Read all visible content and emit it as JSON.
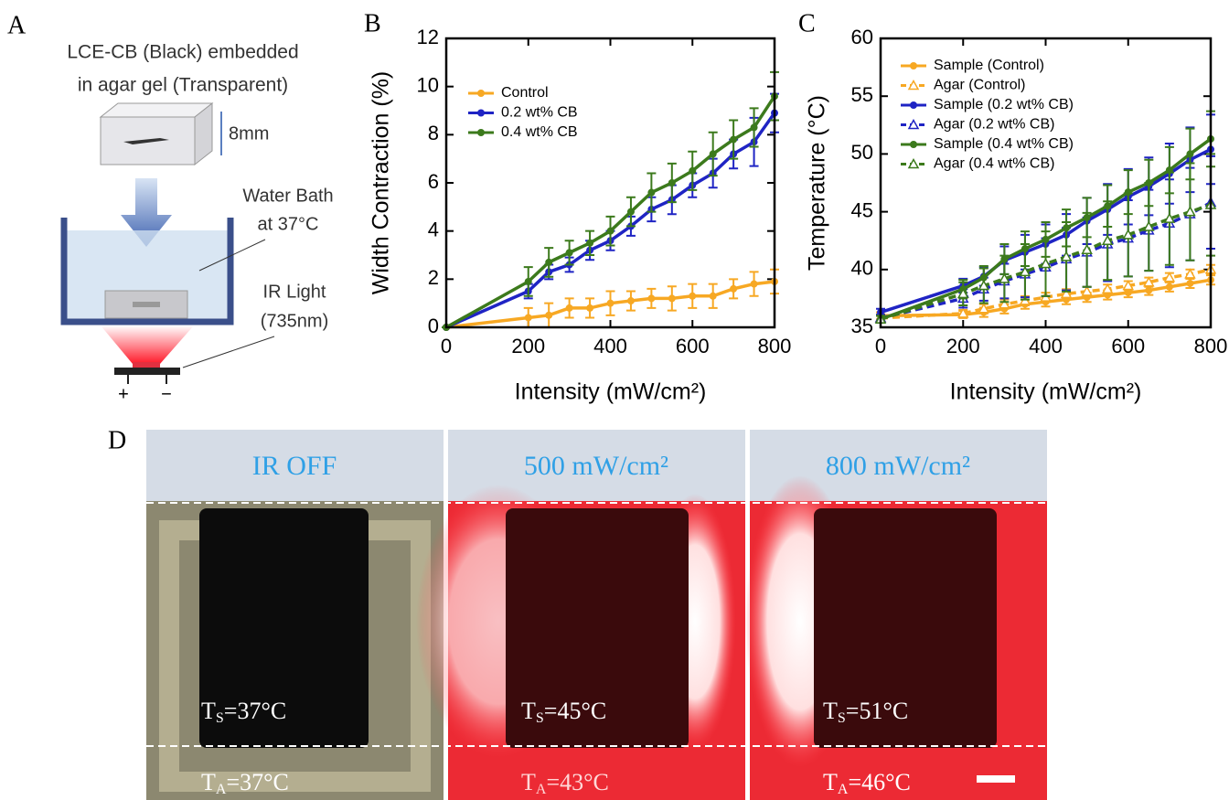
{
  "panels": {
    "a": "A",
    "b": "B",
    "c": "C",
    "d": "D"
  },
  "schematic": {
    "title_line1": "LCE-CB (Black) embedded",
    "title_line2": "in agar gel (Transparent)",
    "thickness": "8mm",
    "bath_line1": "Water Bath",
    "bath_line2": "at 37°C",
    "light_line1": "IR Light",
    "light_line2": "(735nm)",
    "plus": "+",
    "minus": "−"
  },
  "chart_data": [
    {
      "type": "line",
      "x_label": "Intensity (mW/cm²)",
      "y_label": "Width Contraction (%)",
      "x": [
        0,
        200,
        250,
        300,
        350,
        400,
        450,
        500,
        550,
        600,
        650,
        700,
        750,
        800
      ],
      "xlim": [
        0,
        800
      ],
      "xticks": [
        0,
        200,
        400,
        600,
        800
      ],
      "ylim": [
        0,
        12
      ],
      "yticks": [
        0,
        2,
        4,
        6,
        8,
        10,
        12
      ],
      "series": [
        {
          "name": "Control",
          "color": "#f7a823",
          "marker": "circle",
          "dashed": false,
          "values": [
            0,
            0.4,
            0.5,
            0.8,
            0.8,
            1.0,
            1.1,
            1.2,
            1.2,
            1.3,
            1.3,
            1.6,
            1.8,
            1.9
          ],
          "errors": [
            0,
            0.4,
            0.5,
            0.4,
            0.4,
            0.5,
            0.4,
            0.4,
            0.5,
            0.5,
            0.5,
            0.4,
            0.5,
            0.5
          ]
        },
        {
          "name": "0.2 wt% CB",
          "color": "#1f24c4",
          "marker": "circle",
          "dashed": false,
          "values": [
            0,
            1.5,
            2.3,
            2.6,
            3.2,
            3.6,
            4.2,
            4.9,
            5.3,
            5.9,
            6.4,
            7.2,
            7.7,
            8.9
          ],
          "errors": [
            0,
            0.3,
            0.3,
            0.3,
            0.4,
            0.4,
            0.4,
            0.5,
            0.6,
            0.5,
            0.6,
            0.6,
            1.0,
            0.8
          ]
        },
        {
          "name": "0.4 wt% CB",
          "color": "#3c7a1c",
          "marker": "circle",
          "dashed": false,
          "values": [
            0,
            1.9,
            2.7,
            3.1,
            3.5,
            4.0,
            4.8,
            5.6,
            6.0,
            6.5,
            7.2,
            7.8,
            8.3,
            9.6
          ],
          "errors": [
            0,
            0.6,
            0.6,
            0.5,
            0.5,
            0.6,
            0.6,
            0.8,
            0.8,
            0.8,
            0.9,
            0.8,
            0.8,
            1.0
          ]
        }
      ],
      "legend": "upper left"
    },
    {
      "type": "line",
      "x_label": "Intensity (mW/cm²)",
      "y_label": "Temperature (°C)",
      "x": [
        0,
        200,
        250,
        300,
        350,
        400,
        450,
        500,
        550,
        600,
        650,
        700,
        750,
        800
      ],
      "xlim": [
        0,
        800
      ],
      "xticks": [
        0,
        200,
        400,
        600,
        800
      ],
      "ylim": [
        35,
        60
      ],
      "yticks": [
        35,
        40,
        45,
        50,
        55,
        60
      ],
      "series": [
        {
          "name": "Sample (Control)",
          "color": "#f7a823",
          "marker": "circle",
          "dashed": false,
          "values": [
            36,
            36.1,
            36.3,
            36.6,
            37,
            37.2,
            37.4,
            37.6,
            37.8,
            38,
            38.2,
            38.5,
            38.8,
            39.1
          ],
          "errors": [
            0.3,
            0.3,
            0.4,
            0.4,
            0.4,
            0.4,
            0.4,
            0.4,
            0.4,
            0.4,
            0.4,
            0.4,
            0.4,
            0.4
          ]
        },
        {
          "name": "Agar (Control)",
          "color": "#f7a823",
          "marker": "triangle",
          "dashed": true,
          "values": [
            35.8,
            36.2,
            36.6,
            37,
            37.3,
            37.6,
            37.9,
            38.1,
            38.3,
            38.6,
            38.9,
            39.3,
            39.6,
            40
          ],
          "errors": [
            0.3,
            0.3,
            0.4,
            0.4,
            0.4,
            0.4,
            0.4,
            0.4,
            0.4,
            0.4,
            0.4,
            0.4,
            0.4,
            0.4
          ]
        },
        {
          "name": "Sample (0.2 wt% CB)",
          "color": "#1f24c4",
          "marker": "circle",
          "dashed": false,
          "values": [
            36.3,
            38.6,
            39.4,
            40.8,
            41.5,
            42.2,
            43,
            44.2,
            45.2,
            46.3,
            47.2,
            48.3,
            49.5,
            50.4
          ],
          "errors": [
            0.3,
            0.6,
            0.8,
            1.2,
            1.5,
            1.7,
            1.8,
            2.0,
            2.2,
            2.4,
            2.5,
            2.6,
            2.8,
            3.0
          ]
        },
        {
          "name": "Agar (0.2 wt% CB)",
          "color": "#1f24c4",
          "marker": "triangle",
          "dashed": true,
          "values": [
            35.8,
            37.5,
            38.3,
            39,
            39.6,
            40.2,
            40.9,
            41.5,
            42.2,
            42.7,
            43.4,
            44,
            44.8,
            45.8
          ],
          "errors": [
            0.3,
            0.8,
            1.0,
            1.5,
            2.0,
            2.5,
            2.7,
            3.0,
            3.2,
            3.3,
            3.5,
            3.8,
            4.0,
            4.0
          ]
        },
        {
          "name": "Sample (0.4 wt% CB)",
          "color": "#3c7a1c",
          "marker": "circle",
          "dashed": false,
          "values": [
            35.7,
            38.3,
            39.3,
            40.9,
            41.8,
            42.6,
            43.6,
            44.5,
            45.5,
            46.7,
            47.5,
            48.6,
            50,
            51.3
          ],
          "errors": [
            0.3,
            0.8,
            1.0,
            1.3,
            1.5,
            1.5,
            1.6,
            1.7,
            1.8,
            1.9,
            2.0,
            2.0,
            2.2,
            2.4
          ]
        },
        {
          "name": "Agar (0.4 wt% CB)",
          "color": "#3c7a1c",
          "marker": "triangle",
          "dashed": true,
          "values": [
            35.7,
            37.9,
            38.6,
            39.2,
            39.8,
            40.5,
            41.1,
            41.7,
            42.5,
            43,
            43.7,
            44.4,
            45,
            45.6
          ],
          "errors": [
            0.3,
            1.0,
            1.5,
            2.0,
            2.4,
            2.8,
            3.0,
            3.2,
            3.4,
            3.6,
            3.8,
            4.0,
            4.2,
            4.4
          ]
        }
      ],
      "legend": "upper left"
    }
  ],
  "photos": [
    {
      "header": "IR OFF",
      "ts": [
        "T",
        "S",
        "=37°C"
      ],
      "ta": [
        "T",
        "A",
        "=37°C"
      ]
    },
    {
      "header": "500 mW/cm²",
      "ts": [
        "T",
        "S",
        "=45°C"
      ],
      "ta": [
        "T",
        "A",
        "=43°C"
      ]
    },
    {
      "header": "800 mW/cm²",
      "ts": [
        "T",
        "S",
        "=51°C"
      ],
      "ta": [
        "T",
        "A",
        "=46°C"
      ]
    }
  ]
}
